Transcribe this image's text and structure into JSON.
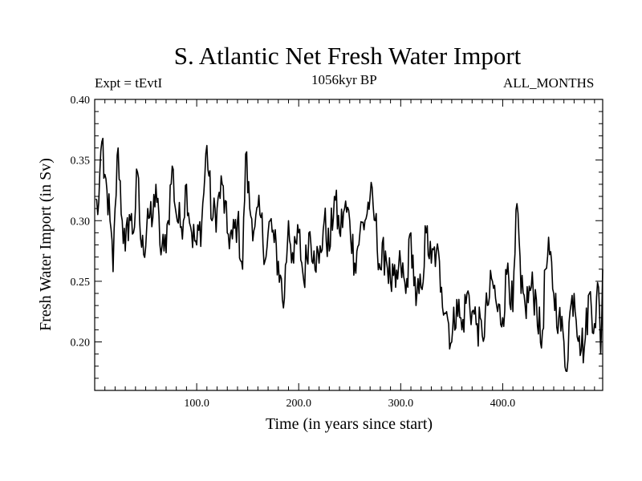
{
  "chart_data": {
    "type": "line",
    "title": "S. Atlantic Net Fresh Water Import",
    "experiment_label": "Expt = tEvtI",
    "period_label": "1056kyr BP",
    "months_label": "ALL_MONTHS",
    "xlabel": "Time (in years since start)",
    "ylabel": "Fresh Water Import (in Sv)",
    "xlim": [
      0,
      498
    ],
    "ylim": [
      0.16,
      0.4
    ],
    "x_ticks": [
      100,
      200,
      300,
      400
    ],
    "x_tick_labels": [
      "100.0",
      "200.0",
      "300.0",
      "400.0"
    ],
    "y_ticks": [
      0.2,
      0.25,
      0.3,
      0.35,
      0.4
    ],
    "y_tick_labels": [
      "0.20",
      "0.25",
      "0.30",
      "0.35",
      "0.40"
    ],
    "series": [
      {
        "name": "Net fresh water import",
        "color": "#000000",
        "x_start": 1,
        "x_step": 1,
        "anchors": [
          [
            1,
            0.318
          ],
          [
            3,
            0.305
          ],
          [
            5,
            0.34
          ],
          [
            7,
            0.365
          ],
          [
            9,
            0.335
          ],
          [
            12,
            0.325
          ],
          [
            15,
            0.3
          ],
          [
            18,
            0.258
          ],
          [
            20,
            0.31
          ],
          [
            23,
            0.36
          ],
          [
            27,
            0.3
          ],
          [
            30,
            0.275
          ],
          [
            34,
            0.305
          ],
          [
            38,
            0.29
          ],
          [
            42,
            0.34
          ],
          [
            45,
            0.285
          ],
          [
            48,
            0.272
          ],
          [
            52,
            0.31
          ],
          [
            56,
            0.295
          ],
          [
            60,
            0.33
          ],
          [
            64,
            0.28
          ],
          [
            68,
            0.275
          ],
          [
            72,
            0.3
          ],
          [
            76,
            0.345
          ],
          [
            80,
            0.305
          ],
          [
            85,
            0.295
          ],
          [
            90,
            0.33
          ],
          [
            95,
            0.29
          ],
          [
            100,
            0.28
          ],
          [
            105,
            0.3
          ],
          [
            110,
            0.362
          ],
          [
            115,
            0.3
          ],
          [
            120,
            0.31
          ],
          [
            125,
            0.33
          ],
          [
            130,
            0.29
          ],
          [
            135,
            0.285
          ],
          [
            140,
            0.3
          ],
          [
            145,
            0.26
          ],
          [
            148,
            0.355
          ],
          [
            152,
            0.31
          ],
          [
            157,
            0.295
          ],
          [
            162,
            0.305
          ],
          [
            168,
            0.27
          ],
          [
            172,
            0.3
          ],
          [
            176,
            0.282
          ],
          [
            182,
            0.255
          ],
          [
            185,
            0.228
          ],
          [
            190,
            0.3
          ],
          [
            195,
            0.265
          ],
          [
            200,
            0.29
          ],
          [
            205,
            0.25
          ],
          [
            210,
            0.29
          ],
          [
            215,
            0.275
          ],
          [
            220,
            0.265
          ],
          [
            225,
            0.3
          ],
          [
            230,
            0.275
          ],
          [
            235,
            0.32
          ],
          [
            240,
            0.29
          ],
          [
            245,
            0.31
          ],
          [
            250,
            0.3
          ],
          [
            255,
            0.265
          ],
          [
            260,
            0.29
          ],
          [
            265,
            0.3
          ],
          [
            270,
            0.32
          ],
          [
            275,
            0.3
          ],
          [
            280,
            0.26
          ],
          [
            285,
            0.275
          ],
          [
            290,
            0.25
          ],
          [
            295,
            0.245
          ],
          [
            300,
            0.265
          ],
          [
            305,
            0.24
          ],
          [
            310,
            0.29
          ],
          [
            315,
            0.23
          ],
          [
            320,
            0.245
          ],
          [
            325,
            0.29
          ],
          [
            330,
            0.265
          ],
          [
            335,
            0.275
          ],
          [
            340,
            0.245
          ],
          [
            345,
            0.225
          ],
          [
            350,
            0.2
          ],
          [
            355,
            0.235
          ],
          [
            360,
            0.21
          ],
          [
            365,
            0.24
          ],
          [
            370,
            0.225
          ],
          [
            375,
            0.215
          ],
          [
            380,
            0.205
          ],
          [
            385,
            0.23
          ],
          [
            390,
            0.25
          ],
          [
            395,
            0.225
          ],
          [
            400,
            0.22
          ],
          [
            405,
            0.265
          ],
          [
            410,
            0.225
          ],
          [
            414,
            0.314
          ],
          [
            418,
            0.24
          ],
          [
            422,
            0.23
          ],
          [
            428,
            0.245
          ],
          [
            433,
            0.235
          ],
          [
            438,
            0.195
          ],
          [
            442,
            0.26
          ],
          [
            446,
            0.272
          ],
          [
            450,
            0.24
          ],
          [
            455,
            0.22
          ],
          [
            460,
            0.2
          ],
          [
            462,
            0.176
          ],
          [
            466,
            0.225
          ],
          [
            470,
            0.24
          ],
          [
            475,
            0.205
          ],
          [
            480,
            0.195
          ],
          [
            485,
            0.24
          ],
          [
            490,
            0.215
          ],
          [
            494,
            0.245
          ],
          [
            496,
            0.19
          ],
          [
            498,
            0.26
          ]
        ],
        "noise_amplitude": 0.018
      }
    ]
  }
}
